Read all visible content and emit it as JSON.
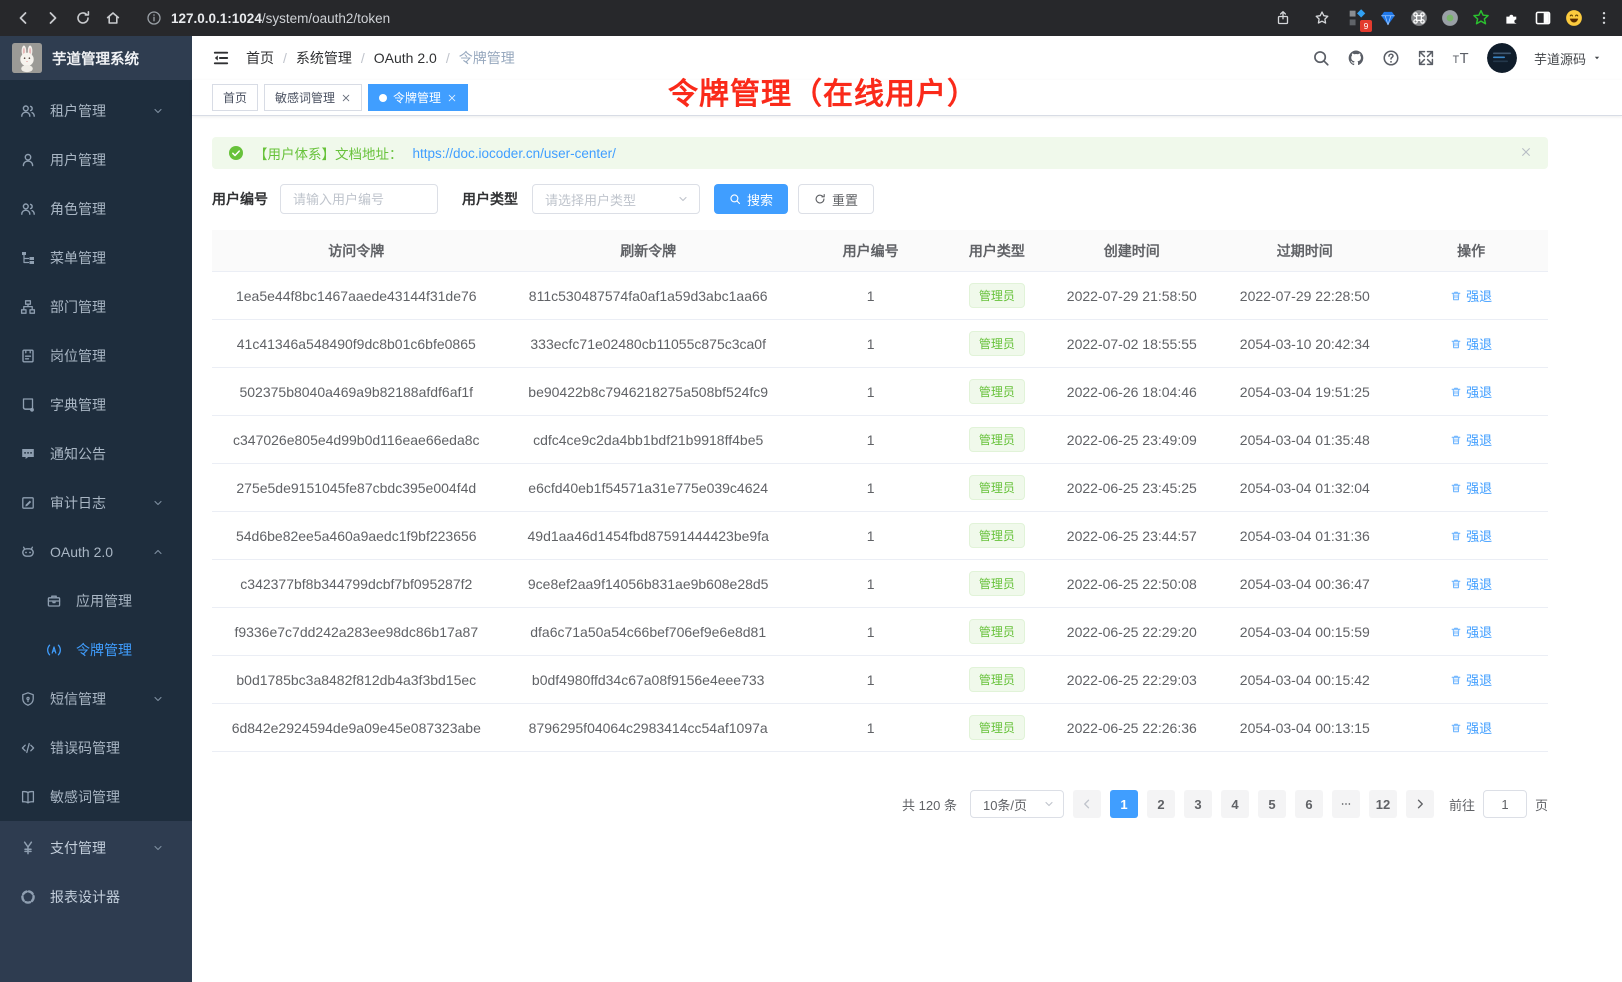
{
  "browser": {
    "url_host": "127.0.0.1:1024",
    "url_path": "/system/oauth2/token",
    "extension_badge": "9"
  },
  "sidebar": {
    "logo_title": "芋道管理系统",
    "menu": [
      {
        "label": "租户管理",
        "icon": "users",
        "chevron": "down"
      },
      {
        "label": "用户管理",
        "icon": "user"
      },
      {
        "label": "角色管理",
        "icon": "users"
      },
      {
        "label": "菜单管理",
        "icon": "menu-tree"
      },
      {
        "label": "部门管理",
        "icon": "org-tree"
      },
      {
        "label": "岗位管理",
        "icon": "badge"
      },
      {
        "label": "字典管理",
        "icon": "dict-book"
      },
      {
        "label": "通知公告",
        "icon": "message"
      },
      {
        "label": "审计日志",
        "icon": "audit-log",
        "chevron": "down"
      },
      {
        "label": "OAuth 2.0",
        "icon": "robot",
        "chevron": "up"
      },
      {
        "label": "应用管理",
        "icon": "briefcase",
        "indent": true
      },
      {
        "label": "令牌管理",
        "icon": "broadcast",
        "indent": true,
        "active": true
      },
      {
        "label": "短信管理",
        "icon": "shield",
        "chevron": "down"
      },
      {
        "label": "错误码管理",
        "icon": "code"
      },
      {
        "label": "敏感词管理",
        "icon": "open-book"
      }
    ],
    "menu_bottom": [
      {
        "label": "支付管理",
        "icon": "yen",
        "chevron": "down"
      },
      {
        "label": "报表设计器",
        "icon": "report"
      }
    ]
  },
  "header": {
    "breadcrumb": [
      "首页",
      "系统管理",
      "OAuth 2.0",
      "令牌管理"
    ],
    "username": "芋道源码"
  },
  "tabs": [
    {
      "label": "首页",
      "closable": false,
      "active": false
    },
    {
      "label": "敏感词管理",
      "closable": true,
      "active": false
    },
    {
      "label": "令牌管理",
      "closable": true,
      "active": true
    }
  ],
  "annotation": {
    "text": "令牌管理（在线用户）",
    "color": "#fa2a1a"
  },
  "alert": {
    "prefix": "【用户体系】文档地址：",
    "link": "https://doc.iocoder.cn/user-center/"
  },
  "filters": {
    "user_id_label": "用户编号",
    "user_id_placeholder": "请输入用户编号",
    "user_type_label": "用户类型",
    "user_type_placeholder": "请选择用户类型",
    "search_label": "搜索",
    "reset_label": "重置"
  },
  "table": {
    "columns": [
      "访问令牌",
      "刷新令牌",
      "用户编号",
      "用户类型",
      "创建时间",
      "过期时间",
      "操作"
    ],
    "action_label": "强退",
    "rows": [
      {
        "access": "1ea5e44f8bc1467aaede43144f31de76",
        "refresh": "811c530487574fa0af1a59d3abc1aa66",
        "user_id": "1",
        "user_type": "管理员",
        "created": "2022-07-29 21:58:50",
        "expires": "2022-07-29 22:28:50"
      },
      {
        "access": "41c41346a548490f9dc8b01c6bfe0865",
        "refresh": "333ecfc71e02480cb11055c875c3ca0f",
        "user_id": "1",
        "user_type": "管理员",
        "created": "2022-07-02 18:55:55",
        "expires": "2054-03-10 20:42:34"
      },
      {
        "access": "502375b8040a469a9b82188afdf6af1f",
        "refresh": "be90422b8c7946218275a508bf524fc9",
        "user_id": "1",
        "user_type": "管理员",
        "created": "2022-06-26 18:04:46",
        "expires": "2054-03-04 19:51:25"
      },
      {
        "access": "c347026e805e4d99b0d116eae66eda8c",
        "refresh": "cdfc4ce9c2da4bb1bdf21b9918ff4be5",
        "user_id": "1",
        "user_type": "管理员",
        "created": "2022-06-25 23:49:09",
        "expires": "2054-03-04 01:35:48"
      },
      {
        "access": "275e5de9151045fe87cbdc395e004f4d",
        "refresh": "e6cfd40eb1f54571a31e775e039c4624",
        "user_id": "1",
        "user_type": "管理员",
        "created": "2022-06-25 23:45:25",
        "expires": "2054-03-04 01:32:04"
      },
      {
        "access": "54d6be82ee5a460a9aedc1f9bf223656",
        "refresh": "49d1aa46d1454fbd87591444423be9fa",
        "user_id": "1",
        "user_type": "管理员",
        "created": "2022-06-25 23:44:57",
        "expires": "2054-03-04 01:31:36"
      },
      {
        "access": "c342377bf8b344799dcbf7bf095287f2",
        "refresh": "9ce8ef2aa9f14056b831ae9b608e28d5",
        "user_id": "1",
        "user_type": "管理员",
        "created": "2022-06-25 22:50:08",
        "expires": "2054-03-04 00:36:47"
      },
      {
        "access": "f9336e7c7dd242a283ee98dc86b17a87",
        "refresh": "dfa6c71a50a54c66bef706ef9e6e8d81",
        "user_id": "1",
        "user_type": "管理员",
        "created": "2022-06-25 22:29:20",
        "expires": "2054-03-04 00:15:59"
      },
      {
        "access": "b0d1785bc3a8482f812db4a3f3bd15ec",
        "refresh": "b0df4980ffd34c67a08f9156e4eee733",
        "user_id": "1",
        "user_type": "管理员",
        "created": "2022-06-25 22:29:03",
        "expires": "2054-03-04 00:15:42"
      },
      {
        "access": "6d842e2924594de9a09e45e087323abe",
        "refresh": "8796295f04064c2983414cc54af1097a",
        "user_id": "1",
        "user_type": "管理员",
        "created": "2022-06-25 22:26:36",
        "expires": "2054-03-04 00:13:15"
      }
    ]
  },
  "pagination": {
    "total": "共 120 条",
    "page_size": "10条/页",
    "pages": [
      "1",
      "2",
      "3",
      "4",
      "5",
      "6",
      "...",
      "12"
    ],
    "active_page": "1",
    "goto_label": "前往",
    "goto_value": "1",
    "goto_suffix": "页"
  },
  "colors": {
    "accent": "#409eff",
    "success": "#67c23a",
    "annotation": "#fa2a1a"
  }
}
